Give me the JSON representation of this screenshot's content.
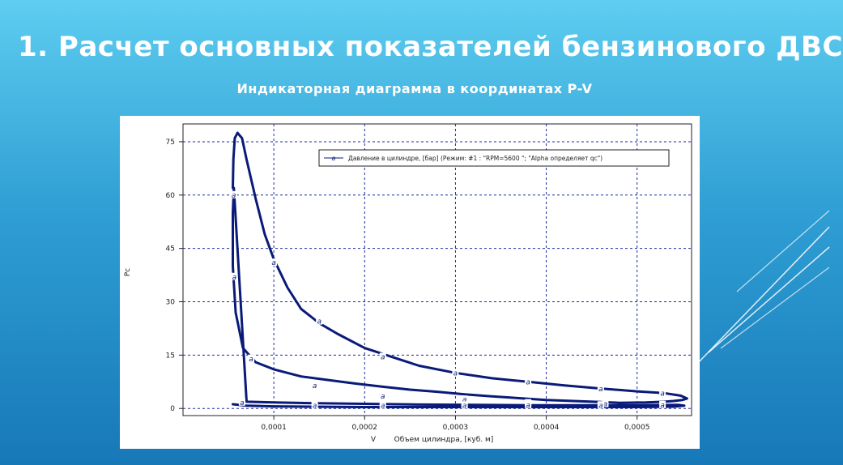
{
  "slide": {
    "title": "1. Расчет основных показателей бензинового ДВС",
    "subtitle": "Индикаторная диаграмма в координатах P-V"
  },
  "colors": {
    "accent_line": "#0a1a78",
    "grid": "#1a2aa0",
    "background_top": "#5ecdf0",
    "background_bottom": "#1778b8"
  },
  "chart_data": {
    "type": "line",
    "xlabel_short": "V",
    "xlabel": "Объем цилиндра, [куб. м]",
    "ylabel": "Pc",
    "xlim": [
      0,
      0.00056
    ],
    "ylim": [
      -2,
      80
    ],
    "x_ticks": [
      0.0001,
      0.0002,
      0.0003,
      0.0004,
      0.0005
    ],
    "x_tick_labels": [
      "0,0001",
      "0,0002",
      "0,0003",
      "0,0004",
      "0,0005"
    ],
    "y_ticks": [
      0,
      15,
      30,
      45,
      60,
      75
    ],
    "y_tick_labels": [
      "0",
      "15",
      "30",
      "45",
      "60",
      "75"
    ],
    "grid": true,
    "legend": {
      "position": "top-right",
      "marker": "a",
      "text": "Давление в цилиндре, [бар] (Режим: #1 : \"RPM=5600       \"; \"Alpha определяет qc\")"
    },
    "marker_char": "a",
    "series": [
      {
        "name": "Давление в цилиндре, [бар]",
        "x": [
          5.48e-05,
          5.55e-05,
          5.7e-05,
          6e-05,
          6.5e-05,
          7e-05,
          8e-05,
          9e-05,
          0.0001,
          0.000115,
          0.00013,
          0.00015,
          0.00017,
          0.0002,
          0.00023,
          0.00026,
          0.0003,
          0.00034,
          0.00038,
          0.00042,
          0.00046,
          0.0005,
          0.00053,
          0.000548,
          0.000555,
          0.00055,
          0.00054,
          0.00053,
          0.00051,
          0.00048,
          0.00046,
          0.00043,
          0.0004,
          0.00037,
          0.00034,
          0.00031,
          0.00028,
          0.00025,
          0.00022,
          0.00019,
          0.00016,
          0.00013,
          0.0001,
          8e-05,
          6.6e-05,
          5.8e-05,
          5.48e-05,
          5.48e-05,
          5.6e-05,
          7e-05,
          0.0001,
          0.00014,
          0.0002,
          0.00026,
          0.00032,
          0.00038,
          0.00044,
          0.0005,
          0.000545,
          0.000552,
          0.00054,
          0.0005,
          0.00044,
          0.00038,
          0.00032,
          0.00026,
          0.0002,
          0.00014,
          0.0001,
          7e-05,
          5.48e-05
        ],
        "y": [
          62,
          70,
          76,
          77.5,
          76,
          70,
          59,
          49,
          42,
          34,
          28,
          24,
          21,
          17,
          14.5,
          12,
          10,
          8.5,
          7.5,
          6.5,
          5.6,
          4.8,
          4.3,
          3.6,
          2.8,
          2.4,
          2.1,
          1.9,
          1.7,
          1.6,
          1.8,
          2.1,
          2.4,
          2.9,
          3.4,
          4.0,
          4.7,
          5.3,
          6.1,
          7.0,
          8.0,
          9.0,
          11,
          13,
          17,
          27,
          40,
          55,
          62,
          1.9,
          1.7,
          1.5,
          1.3,
          1.1,
          1.0,
          0.9,
          0.9,
          0.9,
          1.0,
          0.8,
          0.5,
          0.4,
          0.4,
          0.4,
          0.4,
          0.4,
          0.4,
          0.5,
          0.6,
          0.8,
          1.2
        ]
      }
    ],
    "marker_points": {
      "x": [
        5.58e-05,
        5.65e-05,
        0.0001,
        0.00015,
        0.00022,
        0.0003,
        0.00038,
        0.00046,
        0.000528,
        7.5e-05,
        0.000145,
        0.00022,
        0.00031,
        0.00038,
        0.000465,
        6.5e-05,
        0.000145,
        0.00022,
        0.00031,
        0.00038,
        0.00046,
        0.000528
      ],
      "y": [
        60,
        37,
        41,
        24.5,
        14.5,
        10,
        7.5,
        5.5,
        4.3,
        14,
        6.4,
        3.5,
        2.5,
        1.5,
        1.3,
        1.7,
        0.9,
        0.9,
        0.9,
        1.0,
        0.9,
        1.0
      ]
    }
  }
}
